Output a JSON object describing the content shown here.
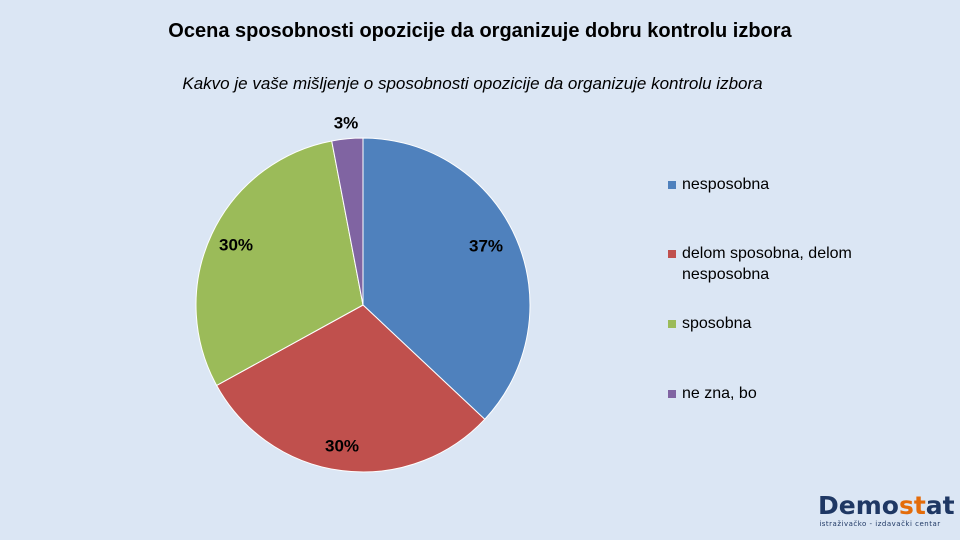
{
  "chart_data": {
    "type": "pie",
    "title": "Ocena sposobnosti opozicije da organizuje dobru kontrolu izbora",
    "subtitle": "Kakvo je vaše mišljenje o sposobnosti opozicije da organizuje kontrolu izbora",
    "categories": [
      "nesposobna",
      "delom sposobna, delom nesposobna",
      "sposobna",
      "ne zna, bo"
    ],
    "values": [
      37,
      30,
      30,
      3
    ],
    "labels": [
      "37%",
      "30%",
      "30%",
      "3%"
    ],
    "colors": [
      "#4f81bd",
      "#c0504d",
      "#9bbb59",
      "#8064a2"
    ],
    "legend_position": "right"
  },
  "legend": {
    "items": [
      {
        "label_line1": "nesposobna",
        "label_line2": ""
      },
      {
        "label_line1": "delom sposobna, delom",
        "label_line2": "nesposobna"
      },
      {
        "label_line1": "sposobna",
        "label_line2": ""
      },
      {
        "label_line1": "ne zna, bo",
        "label_line2": ""
      }
    ]
  },
  "logo": {
    "name_part1": "Demo",
    "name_part2": "st",
    "name_part3": "at",
    "tagline": "istraživačko - izdavački centar"
  }
}
